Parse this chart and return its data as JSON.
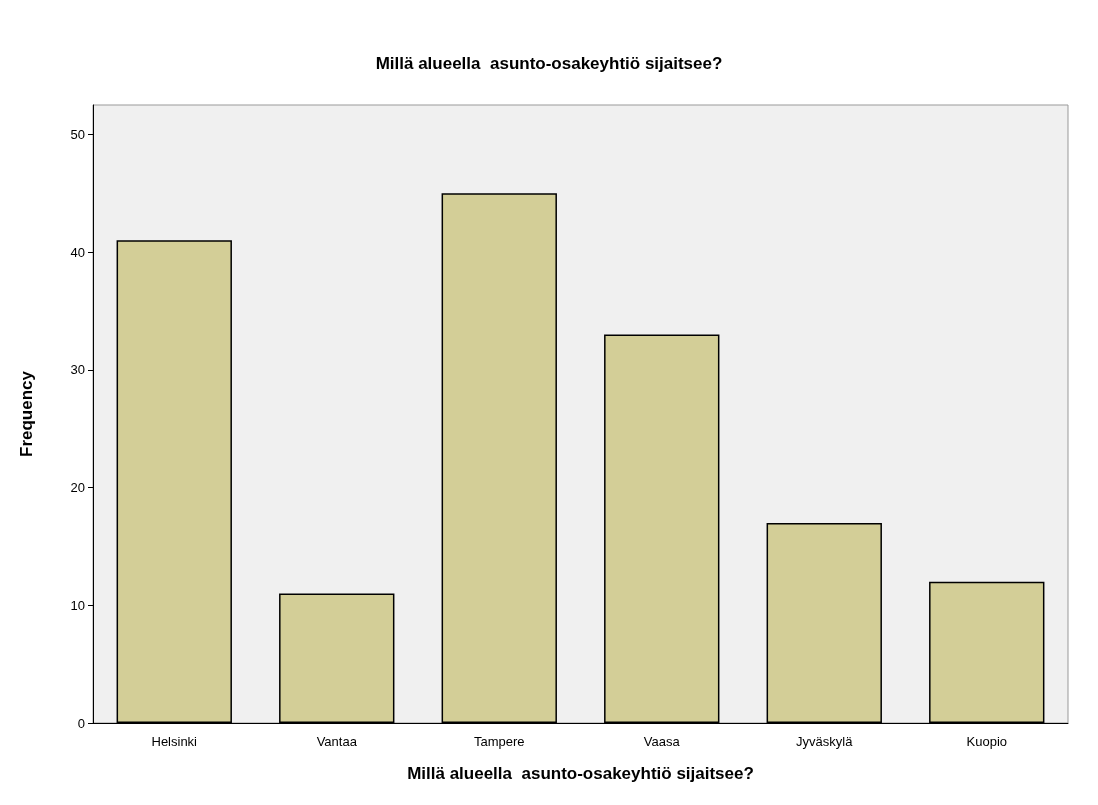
{
  "chart_data": {
    "type": "bar",
    "title": "Millä alueella  asunto-osakeyhtiö sijaitsee?",
    "xlabel": "Millä alueella  asunto-osakeyhtiö sijaitsee?",
    "ylabel": "Frequency",
    "categories": [
      "Helsinki",
      "Vantaa",
      "Tampere",
      "Vaasa",
      "Jyväskylä",
      "Kuopio"
    ],
    "values": [
      41,
      11,
      45,
      33,
      17,
      12
    ],
    "color": "#d3ce97",
    "ylim": [
      0,
      52.5
    ],
    "yticks": [
      0,
      10,
      20,
      30,
      40,
      50
    ]
  }
}
